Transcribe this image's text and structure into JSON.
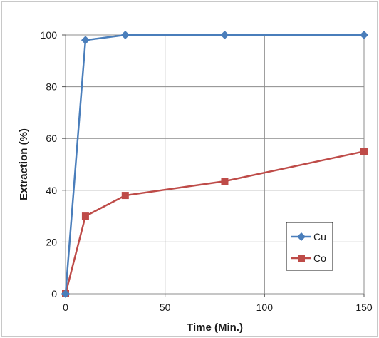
{
  "chart_data": {
    "type": "line",
    "title": "",
    "xlabel": "Time (Min.)",
    "ylabel": "Extraction (%)",
    "xlim": [
      0,
      150
    ],
    "ylim": [
      0,
      100
    ],
    "xticks": [
      "0",
      "50",
      "100",
      "150"
    ],
    "yticks": [
      "0",
      "20",
      "40",
      "60",
      "80",
      "100"
    ],
    "grid": true,
    "legend_position": "bottom-right",
    "series": [
      {
        "name": "Cu",
        "color": "#4a7ebb",
        "marker": "diamond",
        "x": [
          0,
          10,
          30,
          80,
          150
        ],
        "y": [
          0,
          98,
          100,
          100,
          100
        ]
      },
      {
        "name": "Co",
        "color": "#be4b48",
        "marker": "square",
        "x": [
          0,
          10,
          30,
          80,
          150
        ],
        "y": [
          0,
          30,
          38,
          43.5,
          55
        ]
      }
    ]
  }
}
